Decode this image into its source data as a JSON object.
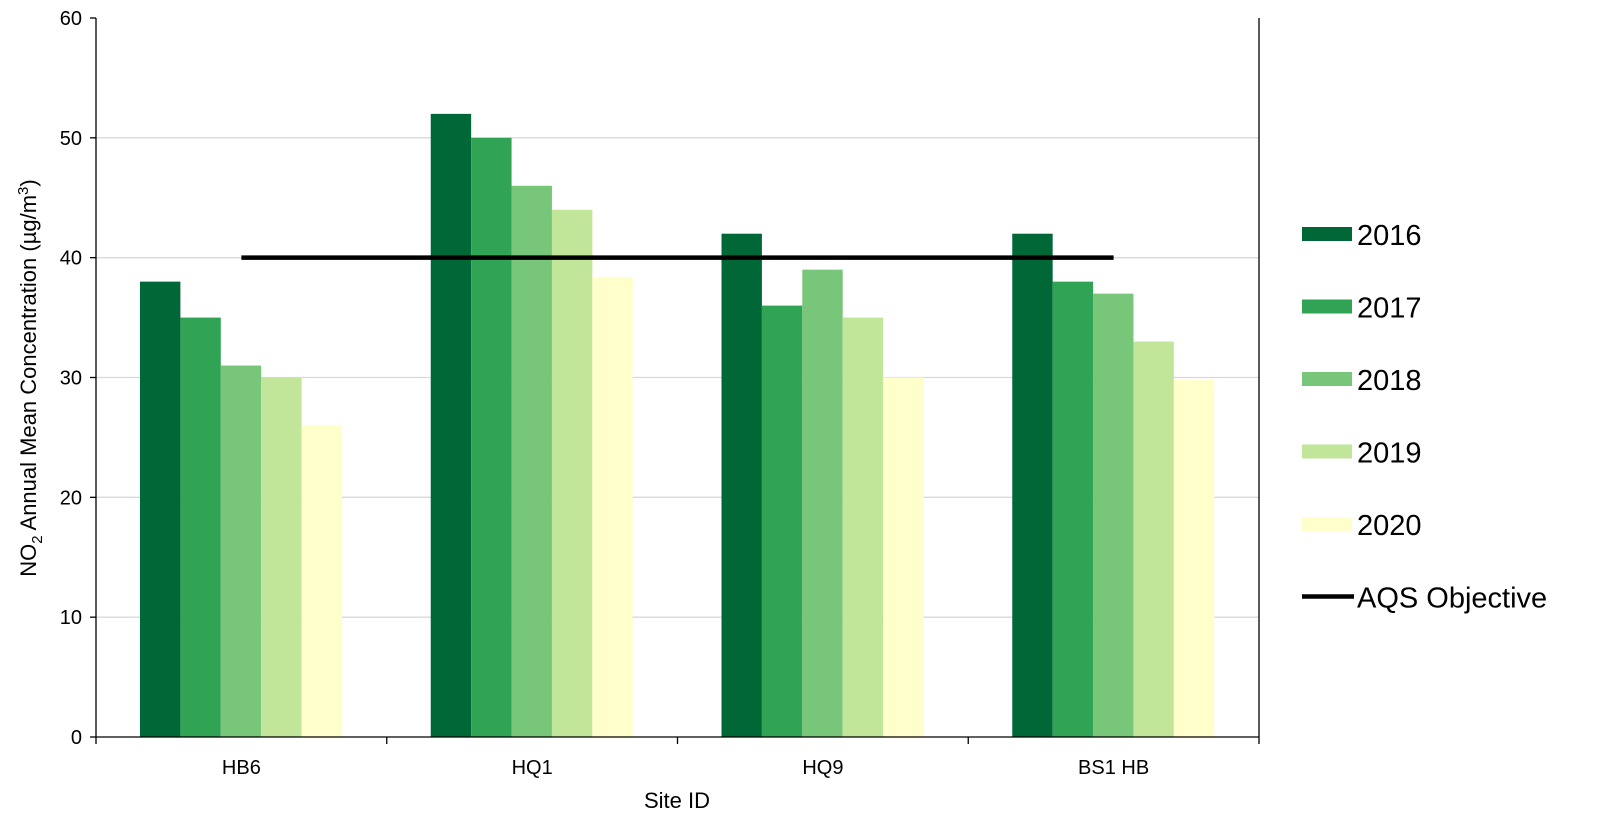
{
  "chart_data": {
    "type": "bar",
    "categories": [
      "HB6",
      "HQ1",
      "HQ9",
      "BS1 HB"
    ],
    "series": [
      {
        "name": "2016",
        "values": [
          38,
          52,
          42,
          42
        ],
        "color": "#006837"
      },
      {
        "name": "2017",
        "values": [
          35,
          50,
          36,
          38
        ],
        "color": "#31a354"
      },
      {
        "name": "2018",
        "values": [
          31,
          46,
          39,
          37
        ],
        "color": "#78c679"
      },
      {
        "name": "2019",
        "values": [
          30,
          44,
          35,
          33
        ],
        "color": "#c2e699"
      },
      {
        "name": "2020",
        "values": [
          26,
          38.4,
          30,
          29.8
        ],
        "color": "#ffffcc"
      }
    ],
    "objective": {
      "name": "AQS Objective",
      "value": 40,
      "color": "#000000"
    },
    "xlabel": "Site ID",
    "ylabel_parts": [
      "NO",
      "2",
      " Annual Mean Concentration (µg/m",
      "3",
      ")"
    ],
    "ylim": [
      0,
      60
    ],
    "yticks": [
      0,
      10,
      20,
      30,
      40,
      50,
      60
    ],
    "grid": true,
    "legend_position": "right"
  }
}
